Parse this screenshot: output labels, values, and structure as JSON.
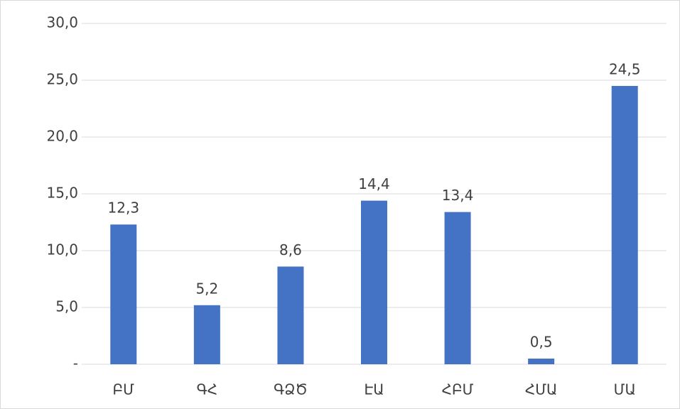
{
  "chart_data": {
    "type": "bar",
    "categories": [
      "ԲՄ",
      "ԳՀ",
      "ԳՁԾ",
      "ԷԱ",
      "ՀԲՄ",
      "ՀՄԱ",
      "ՄԱ"
    ],
    "values": [
      12.3,
      5.2,
      8.6,
      14.4,
      13.4,
      0.5,
      24.5
    ],
    "value_labels": [
      "12,3",
      "5,2",
      "8,6",
      "14,4",
      "13,4",
      "0,5",
      "24,5"
    ],
    "color": "#4472c4",
    "ylim": [
      0,
      30
    ],
    "yticks": [
      {
        "value": 0,
        "label": "-"
      },
      {
        "value": 5,
        "label": "5,0"
      },
      {
        "value": 10,
        "label": "10,0"
      },
      {
        "value": 15,
        "label": "15,0"
      },
      {
        "value": 20,
        "label": "20,0"
      },
      {
        "value": 25,
        "label": "25,0"
      },
      {
        "value": 30,
        "label": "30,0"
      }
    ],
    "grid": true
  }
}
